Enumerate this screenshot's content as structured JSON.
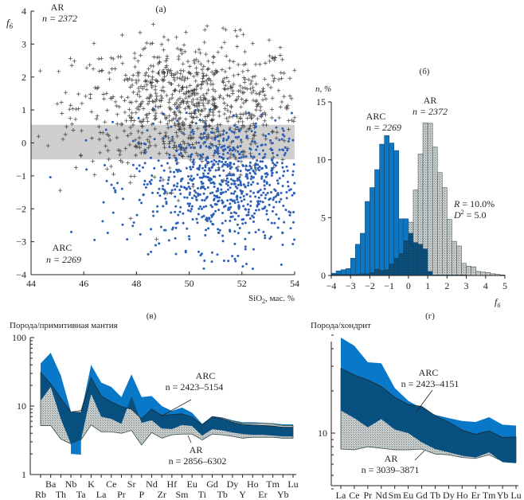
{
  "colors": {
    "arc_blue": "#2b5fb8",
    "arc_light": "#0a78c8",
    "arc_dark": "#08507f",
    "ar_grey": "#bfc4c4",
    "ar_hatch": "#8e9696",
    "band": "#cfcfcf",
    "cross": "#333333"
  },
  "chart_data": [
    {
      "id": "a",
      "type": "scatter",
      "panel_label": "(а)",
      "stray_label": "(б)",
      "xlabel": "SiO2, мас. %",
      "xlabel_main": "SiO",
      "xlabel_sub": "2",
      "xlabel_rest": ", мас. %",
      "ylabel": "f",
      "ylabel_sub": "6",
      "xlim": [
        44,
        54
      ],
      "ylim": [
        -4,
        4
      ],
      "xticks": [
        "44",
        "46",
        "48",
        "50",
        "52",
        "54"
      ],
      "yticks": [
        "−4",
        "−3",
        "−2",
        "−1",
        "0",
        "1",
        "2",
        "3",
        "4"
      ],
      "shaded_band": [
        -0.5,
        0.55
      ],
      "series": [
        {
          "name": "AR",
          "n_label": "n = 2372",
          "n": 2372,
          "marker": "cross",
          "center": [
            50.0,
            1.1
          ],
          "spread": [
            2.4,
            1.0
          ]
        },
        {
          "name": "ARC",
          "n_label": "n = 2269",
          "n": 2269,
          "marker": "dot",
          "center": [
            51.5,
            -1.2
          ],
          "spread": [
            2.0,
            1.0
          ]
        }
      ],
      "annotations": [
        {
          "text": "AR",
          "text2": "n = 2372",
          "where": "top-left"
        },
        {
          "text": "ARC",
          "text2": "n = 2269",
          "where": "bottom-left"
        }
      ]
    },
    {
      "id": "b",
      "type": "bar",
      "panel_label": "(б)",
      "ylabel": "n, %",
      "xlabel": "f",
      "xlabel_sub": "6",
      "xlim": [
        -4,
        5
      ],
      "ylim": [
        0,
        15
      ],
      "bin_width": 0.25,
      "xticks": [
        "−4",
        "−3",
        "−2",
        "−1",
        "0",
        "1",
        "2",
        "3",
        "4",
        "5"
      ],
      "yticks": [
        "0",
        "5",
        "10",
        "15"
      ],
      "series": [
        {
          "name": "ARC",
          "n_label": "n = 2269",
          "values": [
            0.2,
            0.4,
            0.5,
            0.6,
            1.5,
            2.7,
            3.65,
            6.4,
            7.6,
            9.15,
            11.35,
            12.1,
            11.45,
            10.8,
            4.9,
            4.9,
            3.65,
            2.85,
            2.7,
            2.3,
            0.35,
            0.05,
            0.05,
            0.05,
            0.05,
            0.05,
            0.05,
            0.05,
            0.0,
            0.0,
            0.0,
            0.0,
            0.0,
            0.0,
            0.0,
            0.0
          ]
        },
        {
          "name": "AR",
          "n_label": "n = 2372",
          "values": [
            0.1,
            0.1,
            0.1,
            0.1,
            0.1,
            0.1,
            0.15,
            0.15,
            0.25,
            0.55,
            0.45,
            0.5,
            1.0,
            1.5,
            1.9,
            3.0,
            4.6,
            7.4,
            10.5,
            13.2,
            13.15,
            11.1,
            8.9,
            7.6,
            4.85,
            2.95,
            2.55,
            1.05,
            0.8,
            0.75,
            0.35,
            0.3,
            0.25,
            0.15,
            0.1,
            0.05
          ]
        }
      ],
      "stats": {
        "R": "R = 10.0%",
        "D2": "D² = 5.0",
        "R_name": "R",
        "R_val": " = 10.0%",
        "D_name": "D",
        "D_sup": "2",
        "D_val": " = 5.0"
      }
    },
    {
      "id": "v",
      "type": "area",
      "panel_label": "(в)",
      "ylabel": "Порода/примитивная мантия",
      "yscale": "log",
      "ylim": [
        1,
        100
      ],
      "yticks": [
        "1",
        "10",
        "100"
      ],
      "categories": [
        "Rb",
        "Ba",
        "Th",
        "Nb",
        "Ta",
        "K",
        "La",
        "Ce",
        "Pr",
        "Sr",
        "P",
        "Nd",
        "Zr",
        "Hf",
        "Sm",
        "Eu",
        "Ti",
        "Gd",
        "Tb",
        "Dy",
        "Y",
        "Ho",
        "Er",
        "Tm",
        "Yb",
        "Lu"
      ],
      "series": [
        {
          "name": "ARC upper",
          "values": [
            42,
            60,
            28,
            8.3,
            7.8,
            40,
            22,
            19,
            13.5,
            29,
            13.5,
            14,
            10,
            8.5,
            9.5,
            8,
            5.5,
            7.1,
            6.8,
            6.2,
            5.8,
            5.8,
            5.7,
            5.6,
            5.4,
            5.4
          ]
        },
        {
          "name": "ARC lower",
          "values": [
            5.2,
            5.2,
            3.2,
            2.0,
            1.95,
            5.3,
            4.1,
            4.1,
            3.9,
            4.4,
            2.7,
            4.0,
            3.3,
            3.7,
            3.9,
            3.8,
            3.2,
            3.9,
            3.8,
            3.6,
            3.4,
            3.5,
            3.5,
            3.5,
            3.4,
            3.4
          ]
        },
        {
          "name": "AR upper",
          "values": [
            31,
            21,
            13,
            8.2,
            8.6,
            26,
            14,
            11.5,
            9.8,
            9.0,
            6.5,
            9.0,
            7.3,
            7.5,
            7.7,
            6.9,
            5.3,
            7.0,
            6.7,
            6.0,
            5.6,
            5.6,
            5.6,
            5.5,
            5.2,
            5.2
          ]
        },
        {
          "name": "AR lower",
          "values": [
            5.2,
            5.2,
            3.3,
            2.8,
            3.2,
            5.3,
            4.2,
            4.2,
            4.0,
            4.4,
            2.7,
            4.1,
            3.4,
            3.8,
            3.9,
            3.9,
            3.2,
            3.9,
            3.8,
            3.6,
            3.4,
            3.5,
            3.5,
            3.5,
            3.4,
            3.4
          ]
        },
        {
          "name": "ARC median",
          "values": [
            31,
            21,
            13,
            8.2,
            8.0,
            26,
            14,
            11.5,
            9.8,
            9.0,
            6.5,
            9.0,
            7.3,
            7.5,
            7.7,
            6.9,
            5.3,
            7.0,
            6.5,
            5.8,
            5.4,
            5.3,
            5.2,
            5.1,
            4.9,
            4.9
          ]
        },
        {
          "name": "AR median",
          "values": [
            12,
            19,
            6.5,
            2.8,
            3.2,
            15,
            7.0,
            6.5,
            5.5,
            14,
            5.7,
            6.2,
            4.7,
            4.6,
            5.3,
            5.1,
            3.7,
            4.6,
            4.4,
            4.1,
            3.9,
            3.8,
            3.8,
            3.7,
            3.6,
            3.6
          ]
        }
      ],
      "annotations": [
        {
          "text": "ARC",
          "text2": "n = 2423–5154"
        },
        {
          "text": "AR",
          "text2": "n = 2856–6302"
        }
      ]
    },
    {
      "id": "g",
      "type": "area",
      "panel_label": "(г)",
      "ylabel": "Порода/хондрит",
      "yscale": "log",
      "ylim": [
        4,
        52
      ],
      "yticks": [
        "10"
      ],
      "categories": [
        "La",
        "Ce",
        "Pr",
        "Nd",
        "Sm",
        "Eu",
        "Gd",
        "Tb",
        "Dy",
        "Ho",
        "Er",
        "Tm",
        "Yb",
        "Lu"
      ],
      "series": [
        {
          "name": "ARC upper",
          "values": [
            48,
            42,
            32,
            31.5,
            21,
            17,
            15,
            13.5,
            12.8,
            12.2,
            12,
            13,
            11.5,
            11.3
          ]
        },
        {
          "name": "ARC median",
          "values": [
            29,
            26,
            24,
            21.5,
            18,
            16,
            15.5,
            13.3,
            12.0,
            10.5,
            9.8,
            10.4,
            9.3,
            9.4
          ]
        },
        {
          "name": "ARC lower",
          "values": [
            14.5,
            12.8,
            11.0,
            12.6,
            10.6,
            10.0,
            8.6,
            7.7,
            7.3,
            6.9,
            6.7,
            7.3,
            6.2,
            6.1
          ]
        },
        {
          "name": "AR upper",
          "values": [
            13.5,
            12.5,
            11.3,
            12.2,
            10.5,
            10.0,
            9.0,
            8.0,
            7.5,
            7.0,
            6.9,
            7.5,
            6.5,
            6.3
          ]
        },
        {
          "name": "AR lower",
          "values": [
            7.7,
            7.6,
            8.0,
            7.8,
            7.6,
            7.6,
            7.7,
            7.1,
            7.0,
            6.7,
            6.6,
            7.0,
            6.3,
            6.2
          ]
        }
      ],
      "annotations": [
        {
          "text": "ARC",
          "text2": "n = 2423–4151"
        },
        {
          "text": "AR",
          "text2": "n = 3039–3871"
        }
      ]
    }
  ]
}
